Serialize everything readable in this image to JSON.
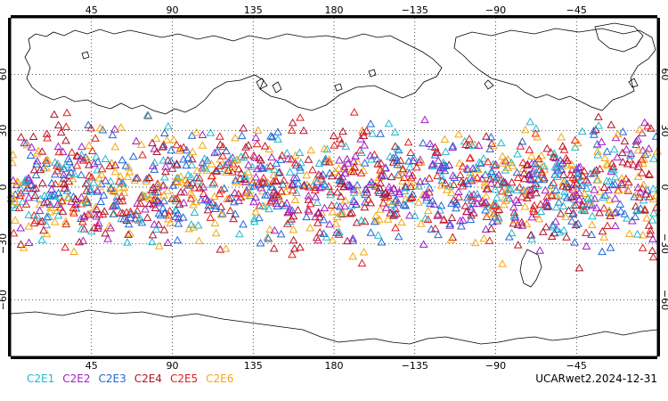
{
  "map": {
    "lon_ticks": [
      "45",
      "90",
      "135",
      "180",
      "−135",
      "−90",
      "−45"
    ],
    "lat_ticks": [
      "60",
      "30",
      "0",
      "−30",
      "−60"
    ],
    "central_longitude": 180,
    "lon_range": [
      0,
      360
    ],
    "lat_range": [
      -90,
      90
    ],
    "grid": "dotted",
    "marker_shape": "triangle-outline",
    "obs_lat_range": [
      -45,
      45
    ]
  },
  "legend": {
    "items": [
      {
        "label": "C2E1",
        "color": "#22b8cf"
      },
      {
        "label": "C2E2",
        "color": "#a21cc9"
      },
      {
        "label": "C2E3",
        "color": "#2167d8"
      },
      {
        "label": "C2E4",
        "color": "#b3122a"
      },
      {
        "label": "C2E5",
        "color": "#e21c1c"
      },
      {
        "label": "C2E6",
        "color": "#f5a70f"
      }
    ]
  },
  "product_label": "UCARwet2.2024-12-31"
}
